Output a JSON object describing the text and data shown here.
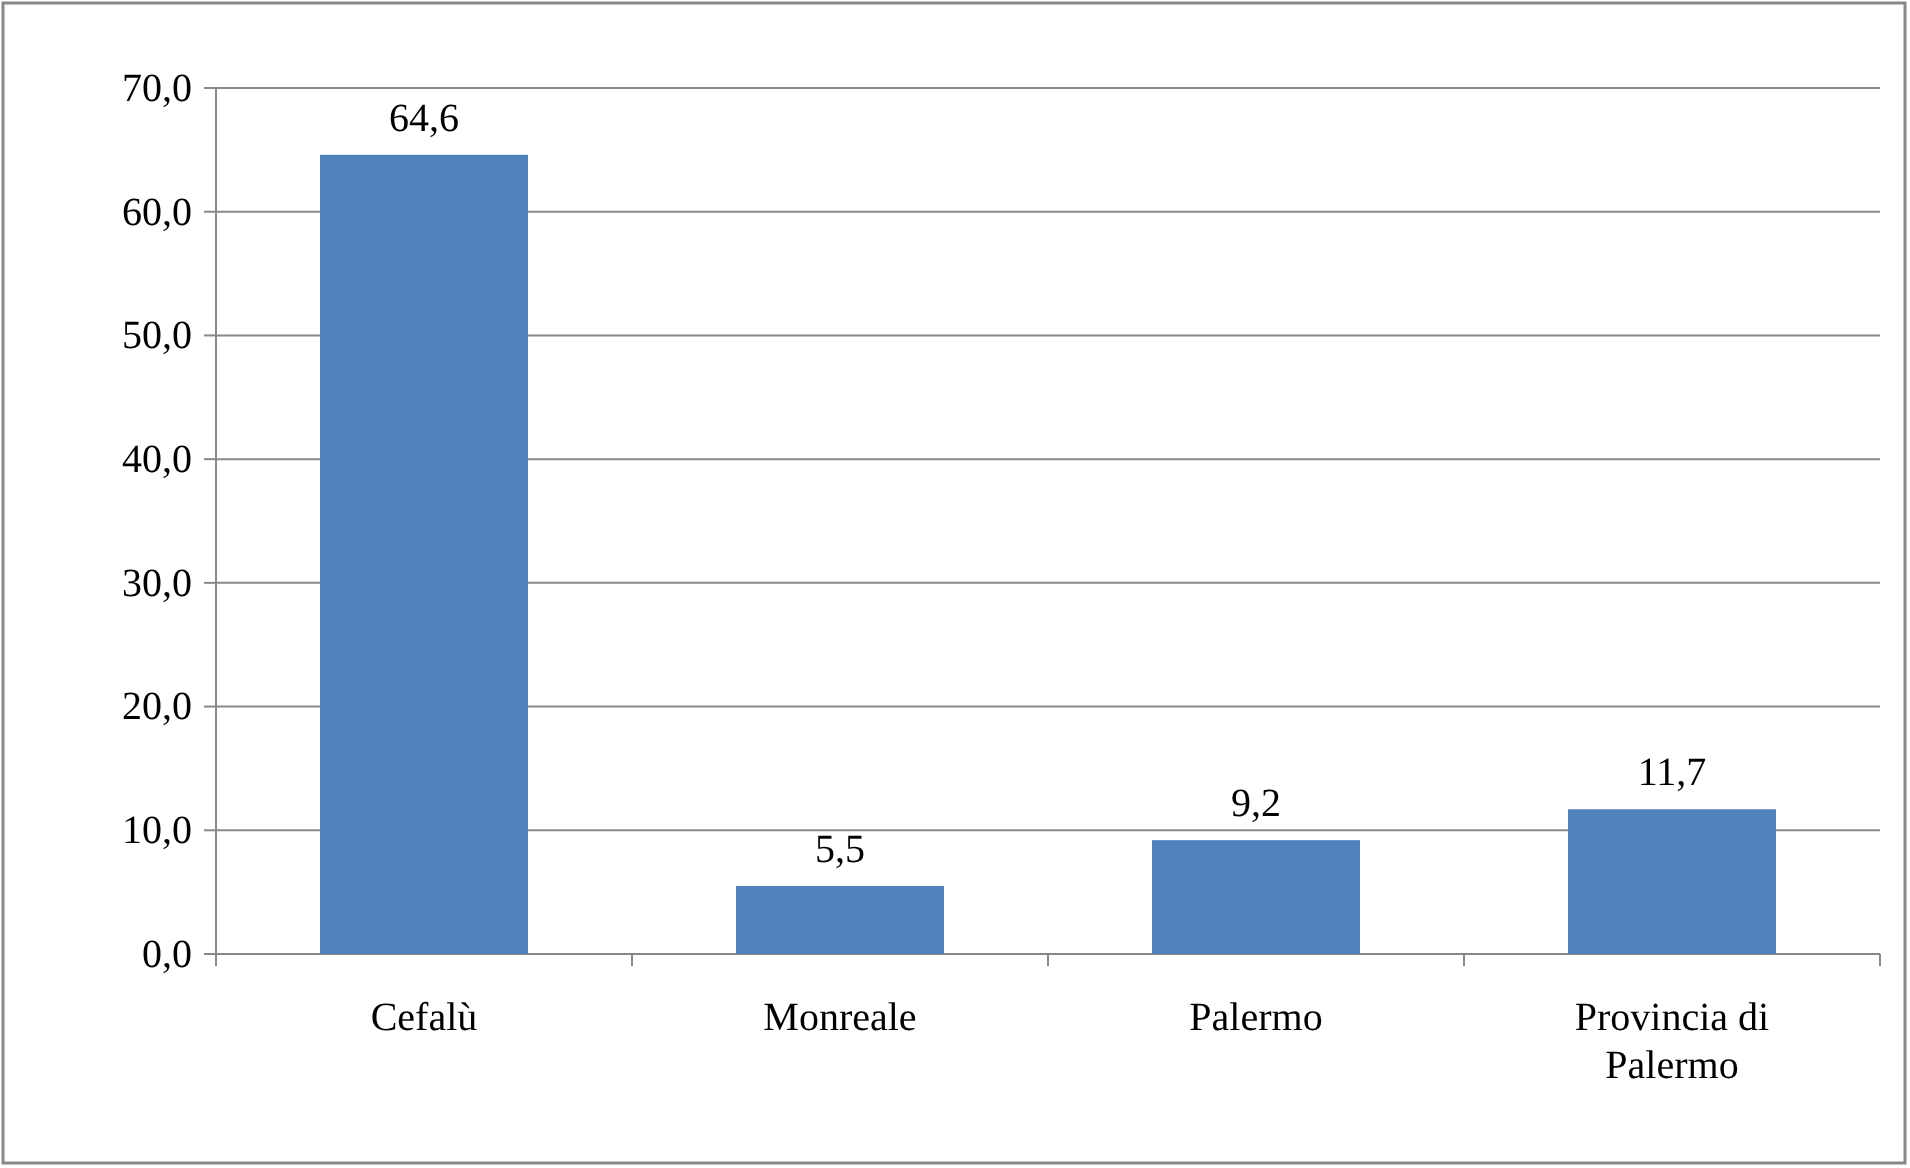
{
  "chart_data": {
    "type": "bar",
    "categories": [
      "Cefalù",
      "Monreale",
      "Palermo",
      "Provincia di Palermo"
    ],
    "values": [
      64.6,
      5.5,
      9.2,
      11.7
    ],
    "color": "#4f81bd",
    "value_labels": [
      "64,6",
      "5,5",
      "9,2",
      "11,7"
    ],
    "ylim": [
      0,
      70
    ],
    "yticks": [
      {
        "value": 0,
        "label": "0,0"
      },
      {
        "value": 10,
        "label": "10,0"
      },
      {
        "value": 20,
        "label": "20,0"
      },
      {
        "value": 30,
        "label": "30,0"
      },
      {
        "value": 40,
        "label": "40,0"
      },
      {
        "value": 50,
        "label": "50,0"
      },
      {
        "value": 60,
        "label": "60,0"
      },
      {
        "value": 70,
        "label": "70,0"
      }
    ],
    "grid": "y"
  }
}
